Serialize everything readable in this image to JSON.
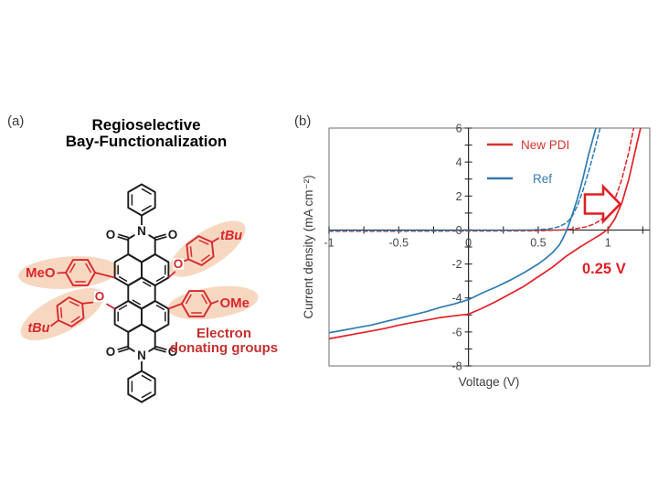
{
  "panel_a": {
    "label": "(a)",
    "title_line1": "Regioselective",
    "title_line2": "Bay-Functionalization",
    "title_color": "#d7282e",
    "caption_line1": "Electron",
    "caption_line2": "donating groups",
    "caption_color": "#c5302f",
    "highlight_color": "#f8d7c1",
    "structure_color": "#1c1c1c",
    "substituent_color": "#d7282e",
    "atoms": {
      "nitrogen": "N",
      "oxygen": "O"
    },
    "groups": {
      "meo": "MeO",
      "ome": "OMe",
      "tbu": "tBu"
    }
  },
  "panel_b": {
    "label": "(b)"
  },
  "chart_data": {
    "type": "line",
    "title": "",
    "xlabel": "Voltage (V)",
    "ylabel": "Current density (mA cm⁻²)",
    "xlim": [
      -1,
      1.3
    ],
    "ylim": [
      -8,
      6
    ],
    "x_tick_step": 0.25,
    "y_tick_step": 1,
    "x_labeled_ticks": [
      -1,
      -0.5,
      0,
      0.5,
      1
    ],
    "y_labeled_ticks": [
      6,
      4,
      2,
      0,
      -2,
      -4,
      -6,
      -8
    ],
    "grid": false,
    "legend_position": "upper-left-inside",
    "annotation": {
      "text": "0.25 V",
      "color": "#e02025"
    },
    "legend": [
      {
        "label": "New PDI",
        "color": "#d5342f"
      },
      {
        "label": "Ref",
        "color": "#3579af"
      }
    ],
    "series": [
      {
        "name": "new-pdi-light",
        "color": "#e32227",
        "style": "solid",
        "points": [
          [
            -1,
            -6.4
          ],
          [
            -0.9,
            -6.25
          ],
          [
            -0.8,
            -6.1
          ],
          [
            -0.7,
            -5.95
          ],
          [
            -0.6,
            -5.8
          ],
          [
            -0.5,
            -5.6
          ],
          [
            -0.4,
            -5.45
          ],
          [
            -0.3,
            -5.3
          ],
          [
            -0.2,
            -5.15
          ],
          [
            -0.1,
            -5.05
          ],
          [
            0,
            -4.95
          ],
          [
            0.1,
            -4.6
          ],
          [
            0.2,
            -4.2
          ],
          [
            0.3,
            -3.75
          ],
          [
            0.4,
            -3.3
          ],
          [
            0.5,
            -2.75
          ],
          [
            0.6,
            -2.2
          ],
          [
            0.7,
            -1.55
          ],
          [
            0.8,
            -1.0
          ],
          [
            0.9,
            -0.5
          ],
          [
            0.95,
            -0.25
          ],
          [
            1.0,
            0.05
          ],
          [
            1.05,
            0.65
          ],
          [
            1.1,
            1.6
          ],
          [
            1.15,
            3.0
          ],
          [
            1.2,
            4.8
          ],
          [
            1.24,
            6.2
          ]
        ]
      },
      {
        "name": "new-pdi-dark",
        "color": "#e32227",
        "style": "dashed",
        "points": [
          [
            -1,
            -0.07
          ],
          [
            -0.5,
            -0.07
          ],
          [
            0,
            -0.06
          ],
          [
            0.3,
            -0.05
          ],
          [
            0.5,
            -0.04
          ],
          [
            0.6,
            -0.02
          ],
          [
            0.7,
            0.02
          ],
          [
            0.75,
            0.06
          ],
          [
            0.8,
            0.12
          ],
          [
            0.85,
            0.2
          ],
          [
            0.9,
            0.35
          ],
          [
            0.95,
            0.6
          ],
          [
            1.0,
            1.0
          ],
          [
            1.05,
            1.8
          ],
          [
            1.1,
            3.0
          ],
          [
            1.15,
            4.6
          ],
          [
            1.19,
            6.2
          ]
        ]
      },
      {
        "name": "ref-light",
        "color": "#2e7cb2",
        "style": "solid",
        "points": [
          [
            -1,
            -6.05
          ],
          [
            -0.9,
            -5.9
          ],
          [
            -0.8,
            -5.75
          ],
          [
            -0.7,
            -5.6
          ],
          [
            -0.6,
            -5.4
          ],
          [
            -0.5,
            -5.2
          ],
          [
            -0.4,
            -5.0
          ],
          [
            -0.3,
            -4.8
          ],
          [
            -0.2,
            -4.55
          ],
          [
            -0.1,
            -4.35
          ],
          [
            0,
            -4.1
          ],
          [
            0.1,
            -3.7
          ],
          [
            0.2,
            -3.35
          ],
          [
            0.3,
            -2.95
          ],
          [
            0.4,
            -2.5
          ],
          [
            0.5,
            -2.0
          ],
          [
            0.55,
            -1.7
          ],
          [
            0.6,
            -1.35
          ],
          [
            0.65,
            -0.9
          ],
          [
            0.68,
            -0.45
          ],
          [
            0.71,
            0.1
          ],
          [
            0.74,
            0.8
          ],
          [
            0.78,
            1.8
          ],
          [
            0.82,
            3.0
          ],
          [
            0.86,
            4.4
          ],
          [
            0.9,
            5.6
          ],
          [
            0.92,
            6.2
          ]
        ]
      },
      {
        "name": "ref-dark",
        "color": "#2e7cb2",
        "style": "dashed",
        "points": [
          [
            -1,
            -0.04
          ],
          [
            -0.5,
            -0.04
          ],
          [
            0,
            -0.03
          ],
          [
            0.3,
            -0.02
          ],
          [
            0.45,
            0
          ],
          [
            0.55,
            0.05
          ],
          [
            0.6,
            0.1
          ],
          [
            0.65,
            0.2
          ],
          [
            0.7,
            0.4
          ],
          [
            0.74,
            0.75
          ],
          [
            0.78,
            1.4
          ],
          [
            0.82,
            2.3
          ],
          [
            0.86,
            3.4
          ],
          [
            0.9,
            4.6
          ],
          [
            0.95,
            6.2
          ]
        ]
      }
    ]
  }
}
